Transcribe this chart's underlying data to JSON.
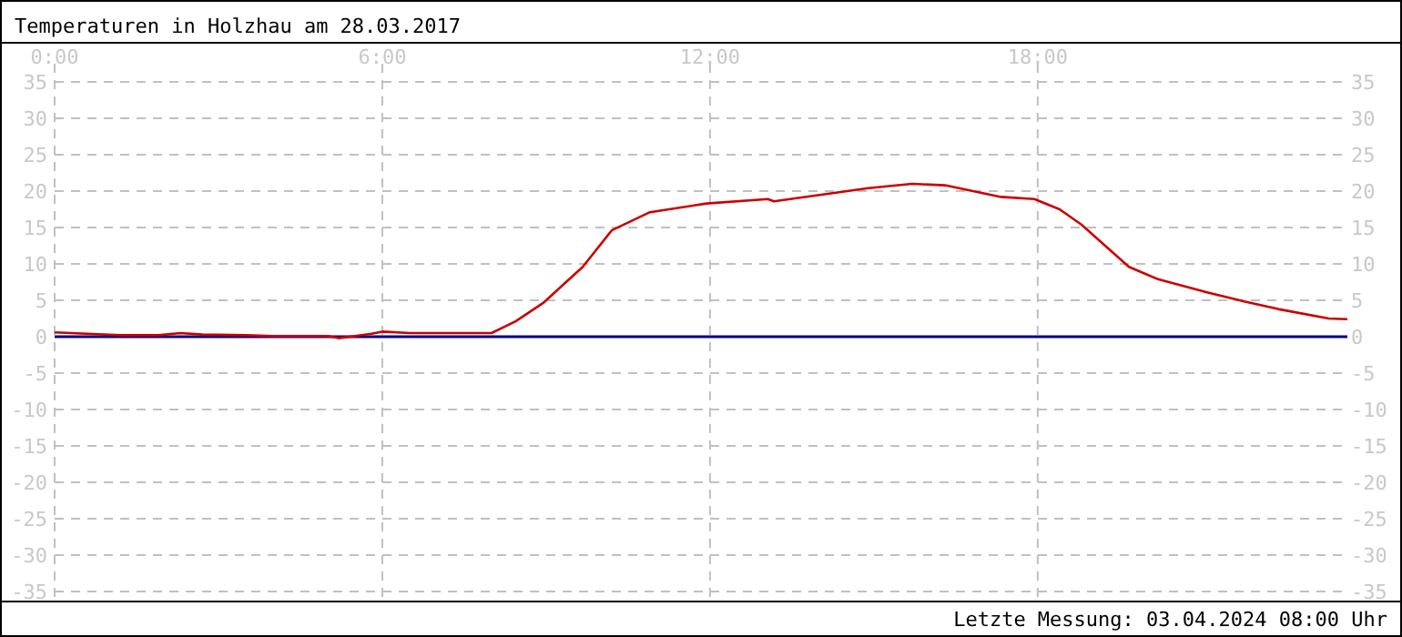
{
  "chart_data": {
    "type": "line",
    "title": "Temperaturen in Holzhau am 28.03.2017",
    "x": [
      0,
      0.3,
      1.2,
      1.9,
      2.3,
      2.7,
      3.5,
      4,
      4.5,
      5,
      5.2,
      5.5,
      5.8,
      6,
      6.5,
      7,
      7.5,
      8,
      8.44,
      8.94,
      9.67,
      10.2,
      10.9,
      11.94,
      13.06,
      13.17,
      14.9,
      15.7,
      16.3,
      17.33,
      17.94,
      18.4,
      18.8,
      19.67,
      20.2,
      21.1,
      21.8,
      22.4,
      23.33,
      23.67
    ],
    "series": [
      {
        "color": "#cc0000",
        "values": [
          0.6,
          0.5,
          0.2,
          0.2,
          0.5,
          0.3,
          0.2,
          0.1,
          0.1,
          0.1,
          -0.2,
          0.1,
          0.4,
          0.7,
          0.5,
          0.5,
          0.5,
          0.5,
          2.1,
          4.6,
          9.6,
          14.6,
          17.1,
          18.3,
          18.9,
          18.6,
          20.4,
          21,
          20.8,
          19.2,
          18.9,
          17.5,
          15.4,
          9.6,
          7.9,
          6.1,
          4.8,
          3.8,
          2.5,
          2.4
        ]
      }
    ],
    "xlim": [
      0,
      23.67
    ],
    "xticks": [
      {
        "value": 0,
        "label": "0:00"
      },
      {
        "value": 6,
        "label": "6:00"
      },
      {
        "value": 12,
        "label": "12:00"
      },
      {
        "value": 18,
        "label": "18:00"
      }
    ],
    "ylim": [
      -35,
      35
    ],
    "yticks": [
      -35,
      -30,
      -25,
      -20,
      -15,
      -10,
      -5,
      0,
      5,
      10,
      15,
      20,
      25,
      30,
      35
    ],
    "y2lim": [
      -35,
      35
    ],
    "y2ticks": [
      -35,
      -30,
      -25,
      -20,
      -15,
      -10,
      -5,
      0,
      5,
      10,
      15,
      20,
      25,
      30,
      35
    ],
    "grid": true,
    "marker": "none",
    "line_style": "solid",
    "ref_lines": [
      {
        "axis": "y",
        "value": 0,
        "color": "#000080",
        "line_style": "solid"
      }
    ],
    "annotations": [
      "Letzte Messung: 03.04.2024 08:00 Uhr"
    ]
  }
}
